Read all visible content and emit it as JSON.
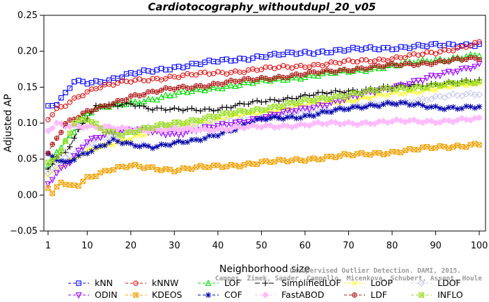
{
  "chart_data": {
    "type": "line",
    "title": "Cardiotocography_withoutdupl_20_v05",
    "xlabel": "Neighborhood size",
    "ylabel": "Adjusted AP",
    "xlim": [
      1,
      100
    ],
    "ylim": [
      -0.05,
      0.25
    ],
    "xticks": [
      "1",
      "10",
      "20",
      "30",
      "40",
      "50",
      "60",
      "70",
      "80",
      "90",
      "100"
    ],
    "yticks": [
      "−0.05",
      "0.00",
      "0.05",
      "0.10",
      "0.15",
      "0.20",
      "0.25"
    ],
    "grid": false,
    "legend_position": "bottom",
    "credit": [
      "Unsupervised Outlier Detection. DAMI, 2015.",
      "Campos, Zimek, Sander, Campello, Micenkova, Schubert, Assent, Houle"
    ],
    "series": [
      {
        "name": "kNN",
        "color": "#0000ff",
        "marker": "square",
        "dash": "4,3",
        "anchors": [
          [
            1,
            0.122
          ],
          [
            3,
            0.126
          ],
          [
            5,
            0.14
          ],
          [
            7,
            0.158
          ],
          [
            10,
            0.157
          ],
          [
            15,
            0.16
          ],
          [
            20,
            0.168
          ],
          [
            30,
            0.178
          ],
          [
            40,
            0.186
          ],
          [
            50,
            0.193
          ],
          [
            60,
            0.198
          ],
          [
            70,
            0.202
          ],
          [
            80,
            0.205
          ],
          [
            90,
            0.208
          ],
          [
            100,
            0.21
          ]
        ]
      },
      {
        "name": "kNNW",
        "color": "#e01010",
        "marker": "circle",
        "dash": "4,3",
        "anchors": [
          [
            1,
            0.105
          ],
          [
            3,
            0.118
          ],
          [
            5,
            0.125
          ],
          [
            8,
            0.138
          ],
          [
            12,
            0.15
          ],
          [
            20,
            0.158
          ],
          [
            30,
            0.165
          ],
          [
            40,
            0.17
          ],
          [
            50,
            0.175
          ],
          [
            60,
            0.18
          ],
          [
            70,
            0.185
          ],
          [
            80,
            0.19
          ],
          [
            90,
            0.198
          ],
          [
            100,
            0.212
          ]
        ]
      },
      {
        "name": "LOF",
        "color": "#00dd00",
        "marker": "triangle-up",
        "dash": "4,3",
        "anchors": [
          [
            1,
            0.04
          ],
          [
            3,
            0.06
          ],
          [
            5,
            0.075
          ],
          [
            7,
            0.09
          ],
          [
            9,
            0.11
          ],
          [
            12,
            0.12
          ],
          [
            17,
            0.125
          ],
          [
            20,
            0.128
          ],
          [
            30,
            0.14
          ],
          [
            40,
            0.15
          ],
          [
            50,
            0.158
          ],
          [
            60,
            0.165
          ],
          [
            70,
            0.172
          ],
          [
            80,
            0.18
          ],
          [
            90,
            0.188
          ],
          [
            100,
            0.194
          ]
        ]
      },
      {
        "name": "SimplifiedLOF",
        "color": "#000000",
        "marker": "plus",
        "dash": "7,3",
        "anchors": [
          [
            1,
            0.035
          ],
          [
            3,
            0.055
          ],
          [
            5,
            0.06
          ],
          [
            7,
            0.08
          ],
          [
            9,
            0.1
          ],
          [
            12,
            0.122
          ],
          [
            17,
            0.125
          ],
          [
            20,
            0.128
          ],
          [
            25,
            0.12
          ],
          [
            30,
            0.118
          ],
          [
            40,
            0.12
          ],
          [
            50,
            0.13
          ],
          [
            60,
            0.138
          ],
          [
            70,
            0.145
          ],
          [
            80,
            0.15
          ],
          [
            90,
            0.155
          ],
          [
            100,
            0.158
          ]
        ]
      },
      {
        "name": "LoOP",
        "color": "#ffff00",
        "marker": "cross",
        "dash": "4,3",
        "anchors": [
          [
            1,
            0.03
          ],
          [
            5,
            0.045
          ],
          [
            10,
            0.06
          ],
          [
            15,
            0.07
          ],
          [
            20,
            0.08
          ],
          [
            30,
            0.095
          ],
          [
            40,
            0.105
          ],
          [
            50,
            0.115
          ],
          [
            60,
            0.125
          ],
          [
            70,
            0.132
          ],
          [
            80,
            0.14
          ],
          [
            90,
            0.148
          ],
          [
            100,
            0.155
          ]
        ]
      },
      {
        "name": "LDOF",
        "color": "#c8c8f0",
        "marker": "diamond",
        "dash": "4,3",
        "anchors": [
          [
            1,
            0.03
          ],
          [
            5,
            0.05
          ],
          [
            10,
            0.07
          ],
          [
            15,
            0.085
          ],
          [
            20,
            0.09
          ],
          [
            30,
            0.095
          ],
          [
            40,
            0.1
          ],
          [
            50,
            0.108
          ],
          [
            60,
            0.115
          ],
          [
            70,
            0.122
          ],
          [
            80,
            0.128
          ],
          [
            90,
            0.135
          ],
          [
            100,
            0.142
          ]
        ]
      },
      {
        "name": "ODIN",
        "color": "#9900ff",
        "marker": "triangle-down",
        "dash": "4,3",
        "anchors": [
          [
            1,
            0.015
          ],
          [
            3,
            0.03
          ],
          [
            6,
            0.045
          ],
          [
            10,
            0.075
          ],
          [
            15,
            0.088
          ],
          [
            20,
            0.09
          ],
          [
            30,
            0.085
          ],
          [
            40,
            0.095
          ],
          [
            50,
            0.108
          ],
          [
            60,
            0.12
          ],
          [
            70,
            0.135
          ],
          [
            80,
            0.15
          ],
          [
            90,
            0.165
          ],
          [
            100,
            0.182
          ]
        ]
      },
      {
        "name": "KDEOS",
        "color": "#f0a000",
        "marker": "square-x",
        "dash": "4,3",
        "anchors": [
          [
            1,
            0.01
          ],
          [
            2,
            0.0
          ],
          [
            4,
            0.018
          ],
          [
            6,
            0.012
          ],
          [
            8,
            0.015
          ],
          [
            10,
            0.025
          ],
          [
            15,
            0.035
          ],
          [
            20,
            0.04
          ],
          [
            25,
            0.038
          ],
          [
            30,
            0.035
          ],
          [
            40,
            0.04
          ],
          [
            50,
            0.045
          ],
          [
            55,
            0.047
          ],
          [
            60,
            0.05
          ],
          [
            70,
            0.055
          ],
          [
            80,
            0.06
          ],
          [
            90,
            0.066
          ],
          [
            100,
            0.071
          ]
        ]
      },
      {
        "name": "COF",
        "color": "#0000aa",
        "marker": "asterisk",
        "dash": "4,3",
        "anchors": [
          [
            1,
            0.055
          ],
          [
            3,
            0.05
          ],
          [
            5,
            0.045
          ],
          [
            8,
            0.055
          ],
          [
            12,
            0.065
          ],
          [
            16,
            0.075
          ],
          [
            20,
            0.07
          ],
          [
            25,
            0.068
          ],
          [
            30,
            0.072
          ],
          [
            35,
            0.075
          ],
          [
            40,
            0.085
          ],
          [
            45,
            0.095
          ],
          [
            50,
            0.105
          ],
          [
            60,
            0.11
          ],
          [
            70,
            0.12
          ],
          [
            75,
            0.125
          ],
          [
            80,
            0.128
          ],
          [
            85,
            0.125
          ],
          [
            90,
            0.122
          ],
          [
            100,
            0.122
          ]
        ]
      },
      {
        "name": "FastABOD",
        "color": "#ffbbff",
        "marker": "diamond-filled",
        "dash": "4,3",
        "anchors": [
          [
            1,
            0.09
          ],
          [
            3,
            0.1
          ],
          [
            5,
            0.098
          ],
          [
            10,
            0.095
          ],
          [
            15,
            0.093
          ],
          [
            20,
            0.092
          ],
          [
            30,
            0.09
          ],
          [
            40,
            0.092
          ],
          [
            50,
            0.095
          ],
          [
            60,
            0.098
          ],
          [
            70,
            0.1
          ],
          [
            80,
            0.102
          ],
          [
            90,
            0.103
          ],
          [
            100,
            0.105
          ]
        ]
      },
      {
        "name": "LDF",
        "color": "#b01818",
        "marker": "circle-plus",
        "dash": "4,3",
        "anchors": [
          [
            1,
            0.06
          ],
          [
            5,
            0.1
          ],
          [
            10,
            0.115
          ],
          [
            15,
            0.125
          ],
          [
            20,
            0.138
          ],
          [
            30,
            0.148
          ],
          [
            40,
            0.155
          ],
          [
            50,
            0.162
          ],
          [
            60,
            0.168
          ],
          [
            70,
            0.175
          ],
          [
            80,
            0.18
          ],
          [
            90,
            0.185
          ],
          [
            100,
            0.19
          ]
        ]
      },
      {
        "name": "INFLO",
        "color": "#99dd22",
        "marker": "square-x",
        "dash": "4,3",
        "anchors": [
          [
            1,
            0.045
          ],
          [
            4,
            0.06
          ],
          [
            7,
            0.1
          ],
          [
            10,
            0.105
          ],
          [
            14,
            0.09
          ],
          [
            18,
            0.085
          ],
          [
            22,
            0.09
          ],
          [
            30,
            0.1
          ],
          [
            40,
            0.11
          ],
          [
            50,
            0.12
          ],
          [
            60,
            0.13
          ],
          [
            70,
            0.14
          ],
          [
            80,
            0.148
          ],
          [
            90,
            0.152
          ],
          [
            100,
            0.158
          ]
        ]
      }
    ]
  }
}
